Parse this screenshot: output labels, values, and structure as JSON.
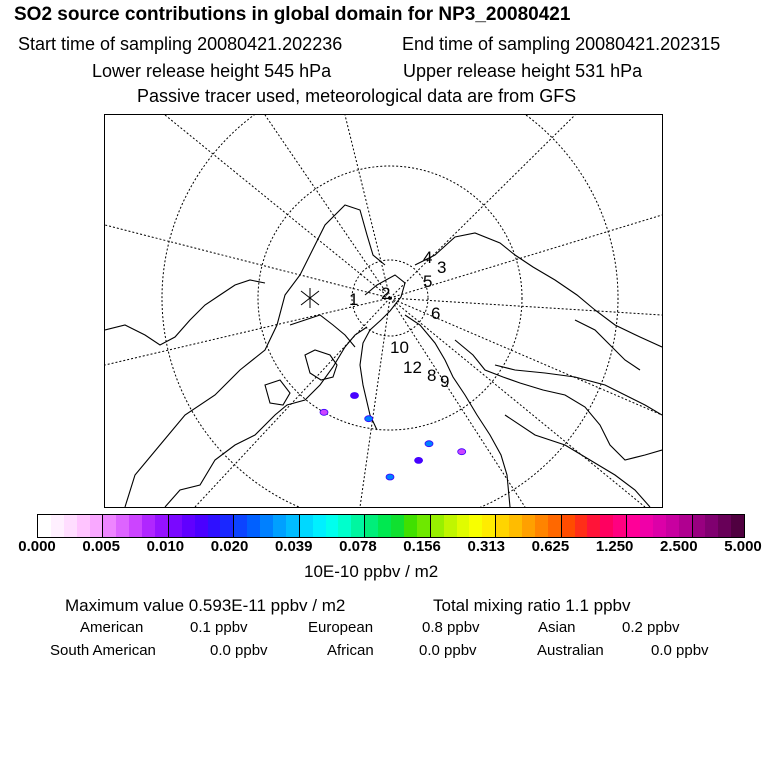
{
  "chart_data": {
    "type": "heatmap",
    "title": "SO2 source contributions in global domain for NP3_20080421",
    "header": {
      "start_time": "Start time of sampling 20080421.202236",
      "end_time": "End time of sampling 20080421.202315",
      "lower_height": "Lower release height  545 hPa",
      "upper_height": "Upper release height  531 hPa",
      "note": "Passive tracer used, meteorological data are from GFS"
    },
    "map_labels": [
      "1",
      "2",
      "3",
      "4",
      "5",
      "6",
      "8",
      "9",
      "10",
      "12"
    ],
    "colorbar": {
      "unit_label": "10E-10 ppbv / m2",
      "tick_labels": [
        "0.000",
        "0.005",
        "0.010",
        "0.020",
        "0.039",
        "0.078",
        "0.156",
        "0.313",
        "0.625",
        "1.250",
        "2.500",
        "5.000"
      ],
      "tick_values": [
        0.0,
        0.005,
        0.01,
        0.02,
        0.039,
        0.078,
        0.156,
        0.313,
        0.625,
        1.25,
        2.5,
        5.0
      ],
      "colors": [
        "#ffffff",
        "#fff0ff",
        "#ffddff",
        "#ffc4ff",
        "#f9a8ff",
        "#ee85ff",
        "#dd64ff",
        "#cc44ff",
        "#b026ff",
        "#9512ff",
        "#7a08ff",
        "#6000ff",
        "#4a00ff",
        "#2f10ff",
        "#1a28ff",
        "#0c44ff",
        "#0060ff",
        "#0080ff",
        "#00a0ff",
        "#00bcff",
        "#00d8ff",
        "#00f0ff",
        "#00ffee",
        "#00ffcc",
        "#00f6a0",
        "#00ee7a",
        "#00e850",
        "#10e030",
        "#40e000",
        "#6ee800",
        "#98f000",
        "#c0f600",
        "#e0fc00",
        "#f8ff00",
        "#ffec00",
        "#ffd400",
        "#ffbc00",
        "#ffa000",
        "#ff8400",
        "#ff6800",
        "#ff4c00",
        "#ff2e18",
        "#ff1438",
        "#ff0060",
        "#ff0080",
        "#ff0098",
        "#f000a8",
        "#dc00a8",
        "#c800a0",
        "#b00090",
        "#980080",
        "#800070",
        "#680058",
        "#500040"
      ]
    },
    "stats": {
      "max_value": "Maximum value  0.593E-11 ppbv / m2",
      "total": "Total mixing ratio      1.1 ppbv"
    },
    "regions": [
      {
        "name": "American",
        "value": "0.1 ppbv"
      },
      {
        "name": "European",
        "value": "0.8 ppbv"
      },
      {
        "name": "Asian",
        "value": "0.2 ppbv"
      },
      {
        "name": "South American",
        "value": "0.0 ppbv"
      },
      {
        "name": "African",
        "value": "0.0 ppbv"
      },
      {
        "name": "Australian",
        "value": "0.0 ppbv"
      }
    ],
    "hotspots": [
      {
        "lon": 95,
        "lat": 56,
        "value": 0.02
      },
      {
        "lon": 100,
        "lat": 53,
        "value": 0.01
      },
      {
        "lon": 110,
        "lat": 50,
        "value": 0.02
      },
      {
        "lon": 120,
        "lat": 62,
        "value": 0.02
      },
      {
        "lon": 130,
        "lat": 66,
        "value": 0.01
      },
      {
        "lon": 85,
        "lat": 52,
        "value": 0.008
      },
      {
        "lon": 140,
        "lat": 60,
        "value": 0.006
      }
    ]
  }
}
